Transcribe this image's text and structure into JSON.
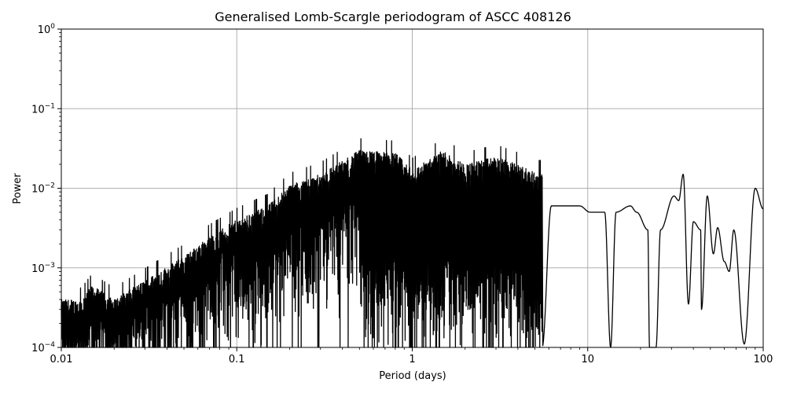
{
  "chart_data": {
    "type": "line",
    "title": "Generalised Lomb-Scargle periodogram of ASCC 408126",
    "xlabel": "Period (days)",
    "ylabel": "Power",
    "xscale": "log",
    "yscale": "log",
    "xlim": [
      0.01,
      100
    ],
    "ylim": [
      0.0001,
      1
    ],
    "grid": true,
    "legend": null,
    "x_ticks": [
      {
        "value": 0.01,
        "label": "0.01"
      },
      {
        "value": 0.1,
        "label": "0.1"
      },
      {
        "value": 1,
        "label": "1"
      },
      {
        "value": 10,
        "label": "10"
      },
      {
        "value": 100,
        "label": "100"
      }
    ],
    "y_ticks": [
      {
        "value": 1,
        "base": "10",
        "exp": "0"
      },
      {
        "value": 0.1,
        "base": "10",
        "exp": "−1"
      },
      {
        "value": 0.01,
        "base": "10",
        "exp": "−2"
      },
      {
        "value": 0.001,
        "base": "10",
        "exp": "−3"
      },
      {
        "value": 0.0001,
        "base": "10",
        "exp": "−4"
      }
    ],
    "line_color": "#000000",
    "grid_color": "#b0b0b0",
    "envelope_peaks": {
      "description": "approximate upper envelope of dense periodogram (period days, power)",
      "x": [
        0.01,
        0.013,
        0.015,
        0.02,
        0.03,
        0.05,
        0.07,
        0.1,
        0.15,
        0.2,
        0.3,
        0.5,
        0.8,
        1.0,
        1.5,
        2.0,
        3.0,
        4.0,
        5.0
      ],
      "y": [
        0.0004,
        0.0004,
        0.0006,
        0.0004,
        0.0007,
        0.0014,
        0.0025,
        0.004,
        0.006,
        0.011,
        0.015,
        0.03,
        0.028,
        0.017,
        0.03,
        0.02,
        0.025,
        0.02,
        0.016
      ]
    },
    "long_period_peaks": {
      "description": "resolved individual peaks at long periods (period days, power)",
      "x": [
        6.2,
        8.0,
        9.0,
        10.3,
        12.5,
        14.5,
        17.5,
        19.0,
        22.0,
        26.0,
        31.0,
        35.0,
        40.0,
        44.0,
        48.0,
        55.0,
        60.0,
        68.0,
        90.0,
        100.0
      ],
      "y": [
        0.006,
        0.006,
        0.006,
        0.005,
        0.005,
        0.005,
        0.006,
        0.005,
        0.003,
        0.003,
        0.008,
        0.015,
        0.0038,
        0.003,
        0.008,
        0.0032,
        0.0012,
        0.003,
        0.01,
        0.0055
      ]
    },
    "long_period_troughs": {
      "x": [
        13.5,
        22.5,
        24.5,
        33.0,
        37.5,
        44.5,
        52.0,
        64.0,
        78.0
      ],
      "y": [
        0.0001,
        0.0001,
        0.0001,
        0.007,
        0.00035,
        0.0003,
        0.0015,
        0.0009,
        0.00011
      ]
    }
  }
}
